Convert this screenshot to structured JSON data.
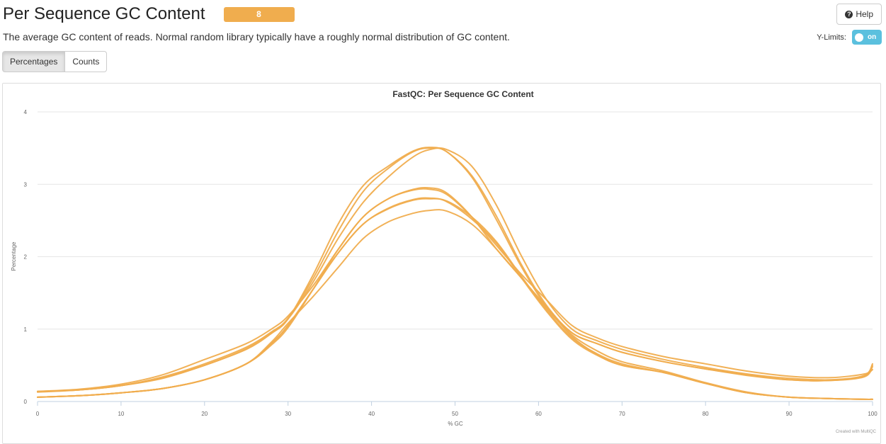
{
  "header": {
    "title": "Per Sequence GC Content",
    "badge": "8"
  },
  "help_button": {
    "label": "Help",
    "icon": "question-circle-icon"
  },
  "description": "The average GC content of reads. Normal random library typically have a roughly normal distribution of GC content.",
  "ylimits": {
    "label": "Y-Limits:",
    "state": "on"
  },
  "tabs": [
    {
      "label": "Percentages",
      "active": true
    },
    {
      "label": "Counts",
      "active": false
    }
  ],
  "credits": "Created with MultiQC",
  "colors": {
    "series": "#f0ad4e",
    "badge": "#f0ad4e",
    "toggle": "#5bc0de"
  },
  "chart_data": {
    "type": "line",
    "title": "FastQC: Per Sequence GC Content",
    "xlabel": "% GC",
    "ylabel": "Percentage",
    "xlim": [
      0,
      100
    ],
    "ylim": [
      0,
      4
    ],
    "xticks": [
      0,
      10,
      20,
      30,
      40,
      50,
      60,
      70,
      80,
      90,
      100
    ],
    "yticks": [
      0,
      1,
      2,
      3,
      4
    ],
    "grid": true,
    "legend": "none",
    "x": [
      0,
      5,
      10,
      15,
      20,
      25,
      28,
      30,
      33,
      36,
      39,
      42,
      45,
      47,
      49,
      52,
      55,
      58,
      61,
      64,
      67,
      70,
      75,
      80,
      85,
      90,
      95,
      99,
      100
    ],
    "series": [
      {
        "values": [
          0.14,
          0.16,
          0.22,
          0.34,
          0.52,
          0.75,
          0.96,
          1.15,
          1.7,
          2.35,
          2.9,
          3.22,
          3.45,
          3.5,
          3.45,
          3.1,
          2.5,
          1.85,
          1.3,
          0.95,
          0.8,
          0.68,
          0.55,
          0.45,
          0.36,
          0.3,
          0.29,
          0.35,
          0.5
        ]
      },
      {
        "values": [
          0.14,
          0.16,
          0.22,
          0.32,
          0.5,
          0.72,
          0.94,
          1.14,
          1.75,
          2.45,
          2.98,
          3.25,
          3.46,
          3.51,
          3.45,
          3.12,
          2.55,
          1.88,
          1.32,
          0.95,
          0.8,
          0.68,
          0.55,
          0.45,
          0.37,
          0.3,
          0.29,
          0.34,
          0.48
        ]
      },
      {
        "values": [
          0.13,
          0.16,
          0.22,
          0.33,
          0.5,
          0.73,
          0.95,
          1.14,
          1.65,
          2.25,
          2.75,
          3.1,
          3.38,
          3.48,
          3.48,
          3.25,
          2.7,
          2.0,
          1.4,
          1.0,
          0.84,
          0.72,
          0.58,
          0.47,
          0.38,
          0.32,
          0.3,
          0.36,
          0.52
        ]
      },
      {
        "values": [
          0.06,
          0.08,
          0.12,
          0.18,
          0.3,
          0.52,
          0.78,
          1.02,
          1.55,
          2.1,
          2.55,
          2.8,
          2.93,
          2.95,
          2.88,
          2.55,
          2.1,
          1.7,
          1.3,
          0.9,
          0.65,
          0.5,
          0.4,
          0.25,
          0.12,
          0.06,
          0.04,
          0.03,
          0.03
        ]
      },
      {
        "values": [
          0.06,
          0.08,
          0.12,
          0.18,
          0.3,
          0.52,
          0.8,
          1.05,
          1.55,
          2.05,
          2.45,
          2.66,
          2.78,
          2.8,
          2.77,
          2.55,
          2.2,
          1.72,
          1.26,
          0.88,
          0.66,
          0.52,
          0.4,
          0.25,
          0.12,
          0.06,
          0.04,
          0.03,
          0.03
        ]
      },
      {
        "values": [
          0.06,
          0.08,
          0.12,
          0.18,
          0.3,
          0.52,
          0.8,
          1.05,
          1.55,
          2.05,
          2.45,
          2.67,
          2.79,
          2.81,
          2.76,
          2.52,
          2.18,
          1.7,
          1.24,
          0.86,
          0.64,
          0.5,
          0.4,
          0.25,
          0.12,
          0.06,
          0.04,
          0.03,
          0.03
        ]
      },
      {
        "values": [
          0.06,
          0.08,
          0.12,
          0.18,
          0.3,
          0.52,
          0.82,
          1.08,
          1.45,
          1.85,
          2.25,
          2.48,
          2.6,
          2.64,
          2.63,
          2.45,
          2.1,
          1.7,
          1.28,
          0.92,
          0.7,
          0.55,
          0.42,
          0.26,
          0.13,
          0.06,
          0.04,
          0.03,
          0.03
        ]
      },
      {
        "values": [
          0.14,
          0.17,
          0.24,
          0.37,
          0.58,
          0.8,
          1.0,
          1.18,
          1.6,
          2.1,
          2.55,
          2.8,
          2.92,
          2.93,
          2.86,
          2.55,
          2.15,
          1.75,
          1.4,
          1.05,
          0.88,
          0.76,
          0.62,
          0.52,
          0.42,
          0.35,
          0.33,
          0.38,
          0.44
        ]
      }
    ]
  }
}
